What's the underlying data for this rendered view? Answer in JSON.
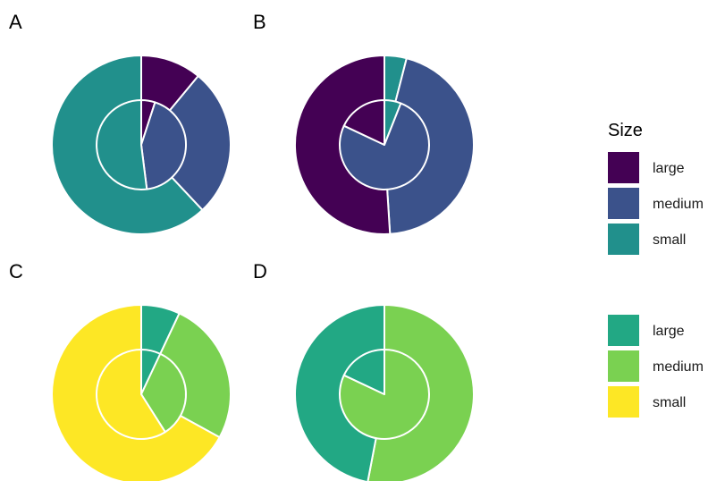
{
  "chart_data": [
    {
      "panel": "A",
      "type": "pie",
      "palette": "legend1",
      "outer": [
        {
          "category": "large",
          "value": 0.11
        },
        {
          "category": "medium",
          "value": 0.27
        },
        {
          "category": "small",
          "value": 0.62
        }
      ],
      "inner": [
        {
          "category": "large",
          "value": 0.05
        },
        {
          "category": "medium",
          "value": 0.43
        },
        {
          "category": "small",
          "value": 0.52
        }
      ]
    },
    {
      "panel": "B",
      "type": "pie",
      "palette": "legend1",
      "outer": [
        {
          "category": "small",
          "value": 0.04
        },
        {
          "category": "medium",
          "value": 0.45
        },
        {
          "category": "large",
          "value": 0.51
        }
      ],
      "inner": [
        {
          "category": "small",
          "value": 0.06
        },
        {
          "category": "medium",
          "value": 0.76
        },
        {
          "category": "large",
          "value": 0.18
        }
      ]
    },
    {
      "panel": "C",
      "type": "pie",
      "palette": "legend2",
      "outer": [
        {
          "category": "large",
          "value": 0.07
        },
        {
          "category": "medium",
          "value": 0.26
        },
        {
          "category": "small",
          "value": 0.67
        }
      ],
      "inner": [
        {
          "category": "large",
          "value": 0.07
        },
        {
          "category": "medium",
          "value": 0.34
        },
        {
          "category": "small",
          "value": 0.59
        }
      ]
    },
    {
      "panel": "D",
      "type": "pie",
      "palette": "legend2",
      "outer": [
        {
          "category": "medium",
          "value": 0.53
        },
        {
          "category": "large",
          "value": 0.47
        }
      ],
      "inner": [
        {
          "category": "medium",
          "value": 0.82
        },
        {
          "category": "large",
          "value": 0.18
        }
      ]
    }
  ],
  "legends": {
    "legend1": {
      "title": "Size",
      "items": [
        {
          "label": "large",
          "color": "#440154"
        },
        {
          "label": "medium",
          "color": "#3b528b"
        },
        {
          "label": "small",
          "color": "#21908c"
        }
      ]
    },
    "legend2": {
      "title": "",
      "items": [
        {
          "label": "large",
          "color": "#22a884"
        },
        {
          "label": "medium",
          "color": "#7ad151"
        },
        {
          "label": "small",
          "color": "#fde725"
        }
      ]
    }
  }
}
